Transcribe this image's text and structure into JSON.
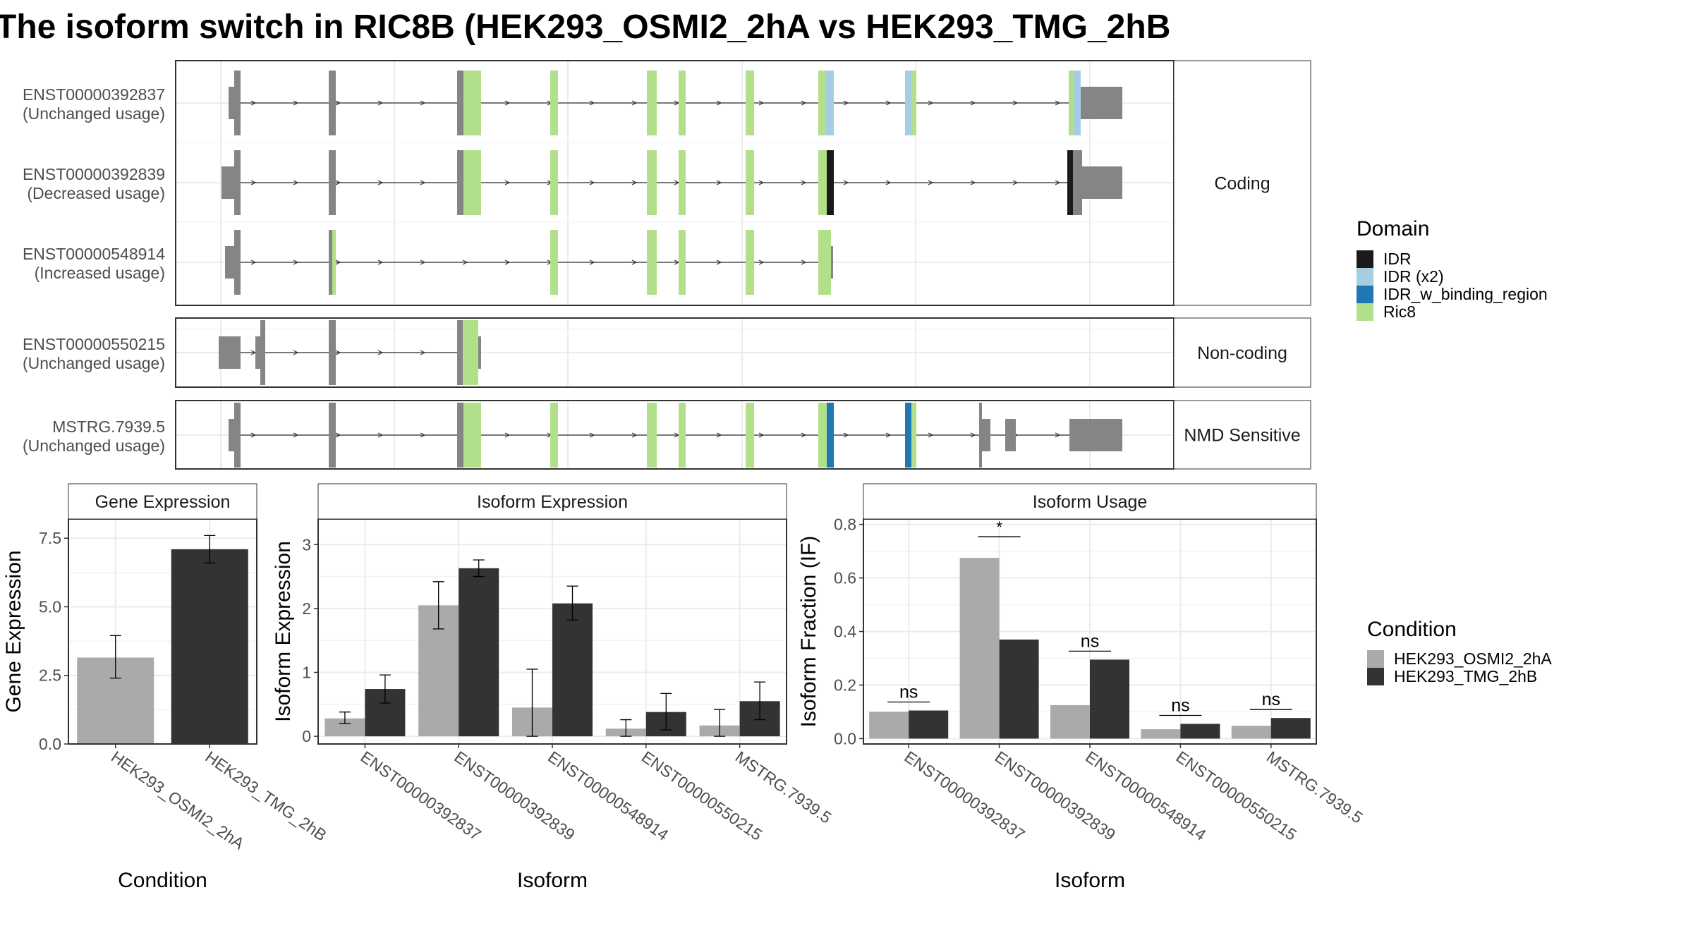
{
  "title": "The isoform switch in RIC8B (HEK293_OSMI2_2hA vs HEK293_TMG_2hB",
  "colors": {
    "exon_gray": "#858585",
    "IDR": "#1a1a1a",
    "IDR (x2)": "#a6cee3",
    "IDR_w_binding_region": "#1f78b4",
    "Ric8": "#b2df8a",
    "HEK293_OSMI2_2hA": "#aaaaaa",
    "HEK293_TMG_2hB": "#333333",
    "panel_strip": "#ffffff",
    "grid": "#ebebeb"
  },
  "structure": {
    "isoforms": [
      {
        "id": "ENST00000392837",
        "usage": "(Unchanged usage)",
        "category": "Coding"
      },
      {
        "id": "ENST00000392839",
        "usage": "(Decreased usage)",
        "category": "Coding"
      },
      {
        "id": "ENST00000548914",
        "usage": "(Increased usage)",
        "category": "Coding"
      },
      {
        "id": "ENST00000550215",
        "usage": "(Unchanged usage)",
        "category": "Non-coding"
      },
      {
        "id": "MSTRG.7939.5",
        "usage": "(Unchanged usage)",
        "category": "NMD Sensitive"
      }
    ],
    "categories": [
      "Coding",
      "Non-coding",
      "NMD Sensitive"
    ],
    "legend_title": "Domain",
    "legend_items": [
      "IDR",
      "IDR (x2)",
      "IDR_w_binding_region",
      "Ric8"
    ]
  },
  "chart_data": [
    {
      "type": "bar",
      "title": "Gene Expression",
      "xlabel": "Condition",
      "ylabel": "Gene Expression",
      "categories": [
        "HEK293_OSMI2_2hA",
        "HEK293_TMG_2hB"
      ],
      "values": [
        3.15,
        7.1
      ],
      "errors": [
        [
          2.4,
          3.95
        ],
        [
          6.6,
          7.6
        ]
      ],
      "ylim": [
        0,
        8.2
      ],
      "yticks": [
        0.0,
        2.5,
        5.0,
        7.5
      ],
      "ytick_labels": [
        "0.0",
        "2.5",
        "5.0",
        "7.5"
      ]
    },
    {
      "type": "bar",
      "title": "Isoform Expression",
      "xlabel": "Isoform",
      "ylabel": "Isoform Expression",
      "categories": [
        "ENST00000392837",
        "ENST00000392839",
        "ENST00000548914",
        "ENST00000550215",
        "MSTRG.7939.5"
      ],
      "series": [
        {
          "name": "HEK293_OSMI2_2hA",
          "values": [
            0.28,
            2.05,
            0.45,
            0.12,
            0.17
          ],
          "errors": [
            [
              0.2,
              0.38
            ],
            [
              1.68,
              2.42
            ],
            [
              0.0,
              1.05
            ],
            [
              0.0,
              0.26
            ],
            [
              0.0,
              0.42
            ]
          ]
        },
        {
          "name": "HEK293_TMG_2hB",
          "values": [
            0.74,
            2.63,
            2.08,
            0.38,
            0.55
          ],
          "errors": [
            [
              0.52,
              0.96
            ],
            [
              2.5,
              2.76
            ],
            [
              1.82,
              2.35
            ],
            [
              0.1,
              0.67
            ],
            [
              0.26,
              0.85
            ]
          ]
        }
      ],
      "ylim": [
        -0.12,
        3.4
      ],
      "yticks": [
        0,
        1,
        2,
        3
      ],
      "ytick_labels": [
        "0",
        "1",
        "2",
        "3"
      ]
    },
    {
      "type": "bar",
      "title": "Isoform Usage",
      "xlabel": "Isoform",
      "ylabel": "Isoform Fraction (IF)",
      "categories": [
        "ENST00000392837",
        "ENST00000392839",
        "ENST00000548914",
        "ENST00000550215",
        "MSTRG.7939.5"
      ],
      "series": [
        {
          "name": "HEK293_OSMI2_2hA",
          "values": [
            0.1,
            0.675,
            0.125,
            0.035,
            0.048
          ]
        },
        {
          "name": "HEK293_TMG_2hB",
          "values": [
            0.105,
            0.37,
            0.295,
            0.055,
            0.077
          ]
        }
      ],
      "significance": [
        "ns",
        "*",
        "ns",
        "ns",
        "ns"
      ],
      "ylim": [
        -0.02,
        0.82
      ],
      "yticks": [
        0.0,
        0.2,
        0.4,
        0.6,
        0.8
      ],
      "ytick_labels": [
        "0.0",
        "0.2",
        "0.4",
        "0.6",
        "0.8"
      ]
    }
  ],
  "condition_legend": {
    "title": "Condition",
    "items": [
      "HEK293_OSMI2_2hA",
      "HEK293_TMG_2hB"
    ]
  }
}
